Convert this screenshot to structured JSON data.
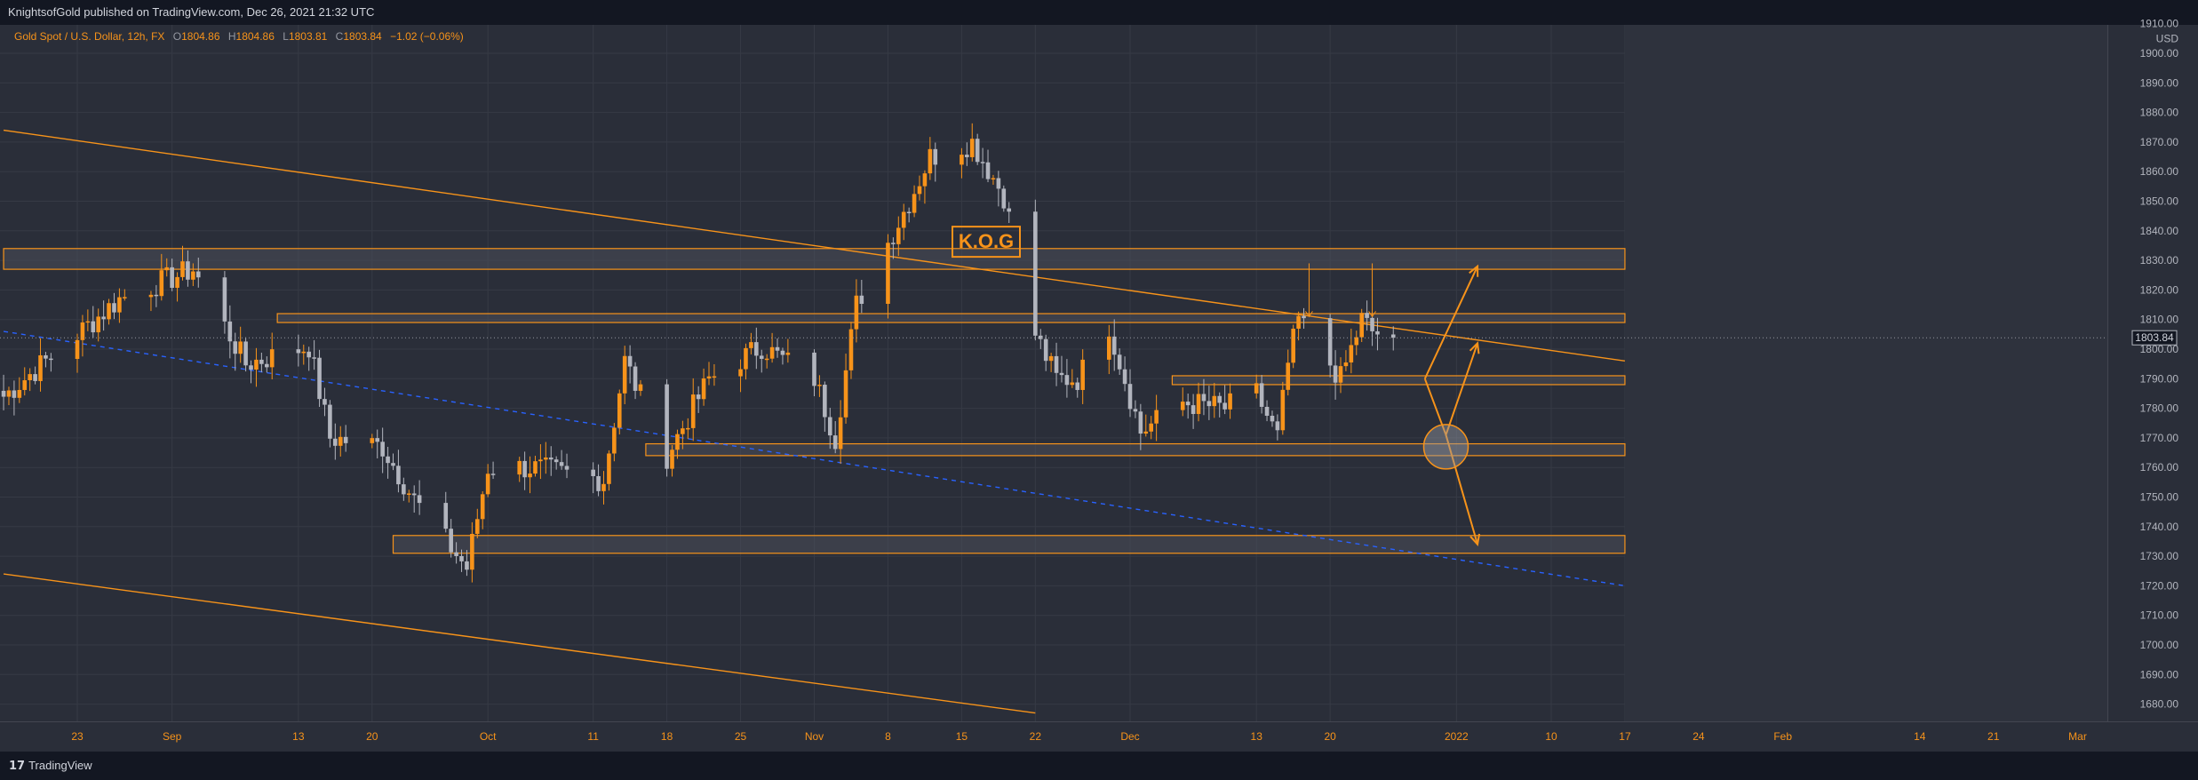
{
  "header": {
    "published": "KnightsofGold published on TradingView.com, Dec 26, 2021 21:32 UTC"
  },
  "legend": {
    "symbol": "Gold Spot / U.S. Dollar, 12h, FX",
    "o_label": "O",
    "o": "1804.86",
    "h_label": "H",
    "h": "1804.86",
    "l_label": "L",
    "l": "1803.81",
    "c_label": "C",
    "c": "1803.84",
    "change": "−1.02 (−0.06%)"
  },
  "annotation": {
    "text": "K.O.G"
  },
  "footer": {
    "brand": "TradingView",
    "brand_glyph": "17"
  },
  "colors": {
    "bull": "#f7931a",
    "bear": "#b2b5be",
    "accent": "#f7931a",
    "zone_fill": "#4a4e5a",
    "trend_dashed": "#2962ff",
    "background": "#2a2e39"
  },
  "chart_data": {
    "type": "candlestick",
    "title": "Gold Spot / U.S. Dollar, 12h, FX",
    "currency_label": "USD",
    "last_price": "1803.84",
    "y_axis": {
      "ticks": [
        "1910.00",
        "1900.00",
        "1890.00",
        "1880.00",
        "1870.00",
        "1860.00",
        "1850.00",
        "1840.00",
        "1830.00",
        "1820.00",
        "1810.00",
        "1800.00",
        "1790.00",
        "1780.00",
        "1770.00",
        "1760.00",
        "1750.00",
        "1740.00",
        "1730.00",
        "1720.00",
        "1710.00",
        "1700.00",
        "1690.00",
        "1680.00"
      ],
      "range": [
        1677,
        1912
      ]
    },
    "x_axis": {
      "ticks": [
        {
          "label": "23",
          "date": "2021-08-23"
        },
        {
          "label": "Sep",
          "date": "2021-09-01"
        },
        {
          "label": "13",
          "date": "2021-09-13"
        },
        {
          "label": "20",
          "date": "2021-09-20"
        },
        {
          "label": "Oct",
          "date": "2021-10-01"
        },
        {
          "label": "11",
          "date": "2021-10-11"
        },
        {
          "label": "18",
          "date": "2021-10-18"
        },
        {
          "label": "25",
          "date": "2021-10-25"
        },
        {
          "label": "Nov",
          "date": "2021-11-01"
        },
        {
          "label": "8",
          "date": "2021-11-08"
        },
        {
          "label": "15",
          "date": "2021-11-15"
        },
        {
          "label": "22",
          "date": "2021-11-22"
        },
        {
          "label": "Dec",
          "date": "2021-12-01"
        },
        {
          "label": "13",
          "date": "2021-12-13"
        },
        {
          "label": "20",
          "date": "2021-12-20"
        },
        {
          "label": "2022",
          "date": "2022-01-01"
        },
        {
          "label": "10",
          "date": "2022-01-10"
        },
        {
          "label": "17",
          "date": "2022-01-17"
        },
        {
          "label": "24",
          "date": "2022-01-24"
        },
        {
          "label": "Feb",
          "date": "2022-02-01"
        },
        {
          "label": "14",
          "date": "2022-02-14"
        },
        {
          "label": "21",
          "date": "2022-02-21"
        },
        {
          "label": "Mar",
          "date": "2022-03-01"
        }
      ]
    },
    "anchors": [
      {
        "date": "2021-08-16",
        "close": 1784
      },
      {
        "date": "2021-08-23",
        "close": 1805
      },
      {
        "date": "2021-08-27",
        "close": 1817
      },
      {
        "date": "2021-09-03",
        "close": 1827
      },
      {
        "date": "2021-09-08",
        "close": 1795
      },
      {
        "date": "2021-09-14",
        "close": 1801
      },
      {
        "date": "2021-09-16",
        "close": 1770
      },
      {
        "date": "2021-09-21",
        "close": 1767
      },
      {
        "date": "2021-09-24",
        "close": 1749
      },
      {
        "date": "2021-09-29",
        "close": 1726
      },
      {
        "date": "2021-10-01",
        "close": 1760
      },
      {
        "date": "2021-10-05",
        "close": 1760
      },
      {
        "date": "2021-10-12",
        "close": 1756
      },
      {
        "date": "2021-10-14",
        "close": 1796
      },
      {
        "date": "2021-10-18",
        "close": 1764
      },
      {
        "date": "2021-10-22",
        "close": 1790
      },
      {
        "date": "2021-10-27",
        "close": 1801
      },
      {
        "date": "2021-11-01",
        "close": 1790
      },
      {
        "date": "2021-11-03",
        "close": 1770
      },
      {
        "date": "2021-11-05",
        "close": 1815
      },
      {
        "date": "2021-11-10",
        "close": 1850
      },
      {
        "date": "2021-11-12",
        "close": 1865
      },
      {
        "date": "2021-11-16",
        "close": 1870
      },
      {
        "date": "2021-11-19",
        "close": 1852
      },
      {
        "date": "2021-11-22",
        "close": 1805
      },
      {
        "date": "2021-11-24",
        "close": 1790
      },
      {
        "date": "2021-11-26",
        "close": 1790
      },
      {
        "date": "2021-11-29",
        "close": 1808
      },
      {
        "date": "2021-12-02",
        "close": 1772
      },
      {
        "date": "2021-12-06",
        "close": 1782
      },
      {
        "date": "2021-12-10",
        "close": 1780
      },
      {
        "date": "2021-12-13",
        "close": 1785
      },
      {
        "date": "2021-12-15",
        "close": 1770
      },
      {
        "date": "2021-12-16",
        "close": 1795
      },
      {
        "date": "2021-12-17",
        "close": 1810
      },
      {
        "date": "2021-12-21",
        "close": 1790
      },
      {
        "date": "2021-12-23",
        "close": 1810
      },
      {
        "date": "2021-12-24",
        "close": 1806
      },
      {
        "date": "2021-12-26",
        "close": 1803.84
      }
    ],
    "zones": [
      {
        "from": "2021-08-16",
        "to": "2022-01-17",
        "low": 1827,
        "high": 1834
      },
      {
        "from": "2021-09-11",
        "to": "2022-01-17",
        "low": 1809,
        "high": 1812
      },
      {
        "from": "2021-12-05",
        "to": "2022-01-17",
        "low": 1788,
        "high": 1791
      },
      {
        "from": "2021-10-16",
        "to": "2022-01-17",
        "low": 1764,
        "high": 1768
      },
      {
        "from": "2021-09-22",
        "to": "2022-01-17",
        "low": 1731,
        "high": 1737
      }
    ],
    "trendlines": [
      {
        "style": "solid",
        "from": {
          "date": "2021-08-16",
          "price": 1874
        },
        "to": {
          "date": "2022-01-17",
          "price": 1796
        }
      },
      {
        "style": "solid",
        "from": {
          "date": "2021-08-16",
          "price": 1724
        },
        "to": {
          "date": "2021-11-22",
          "price": 1677
        }
      },
      {
        "style": "dashed",
        "from": {
          "date": "2021-08-16",
          "price": 1806
        },
        "to": {
          "date": "2022-01-17",
          "price": 1720
        }
      }
    ],
    "projection_paths": [
      [
        {
          "date": "2021-12-29",
          "price": 1790
        },
        {
          "date": "2022-01-03",
          "price": 1828
        }
      ],
      [
        {
          "date": "2021-12-29",
          "price": 1790
        },
        {
          "date": "2021-12-31",
          "price": 1771
        },
        {
          "date": "2022-01-03",
          "price": 1802
        }
      ],
      [
        {
          "date": "2021-12-31",
          "price": 1771
        },
        {
          "date": "2022-01-03",
          "price": 1734
        }
      ]
    ],
    "markers": [
      {
        "type": "circle",
        "date": "2021-12-31",
        "price": 1767
      },
      {
        "type": "arrow-down",
        "date": "2021-12-18",
        "from": 1829,
        "to": 1811
      },
      {
        "type": "arrow-down",
        "date": "2021-12-24",
        "from": 1829,
        "to": 1811
      }
    ]
  }
}
